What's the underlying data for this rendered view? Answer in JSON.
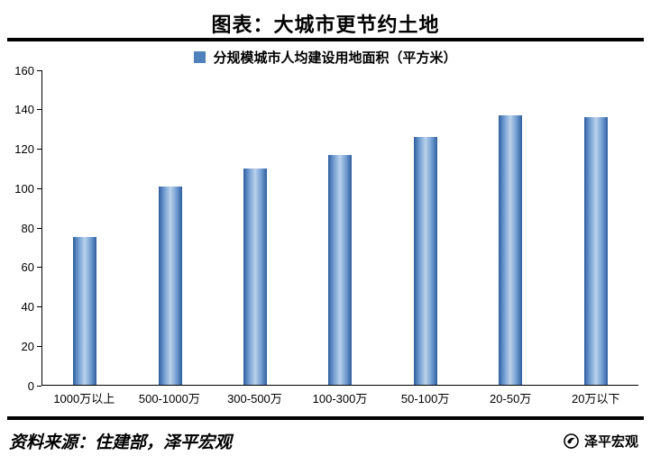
{
  "page": {
    "title": "图表：大城市更节约土地",
    "source": "资料来源：住建部，泽平宏观",
    "brand": "泽平宏观"
  },
  "chart_data": {
    "type": "bar",
    "title": "图表：大城市更节约土地",
    "legend_label": "分规模城市人均建设用地面积（平方米）",
    "legend_position": "top",
    "categories": [
      "1000万以上",
      "500-1000万",
      "300-500万",
      "100-300万",
      "50-100万",
      "20-50万",
      "20万以下"
    ],
    "values": [
      75,
      101,
      110,
      117,
      126,
      137,
      136
    ],
    "xlabel": "",
    "ylabel": "",
    "ylim": [
      0,
      160
    ],
    "ytick_step": 20,
    "yticks": [
      0,
      20,
      40,
      60,
      80,
      100,
      120,
      140,
      160
    ],
    "grid": false,
    "bar_color": "#4f81bd"
  }
}
